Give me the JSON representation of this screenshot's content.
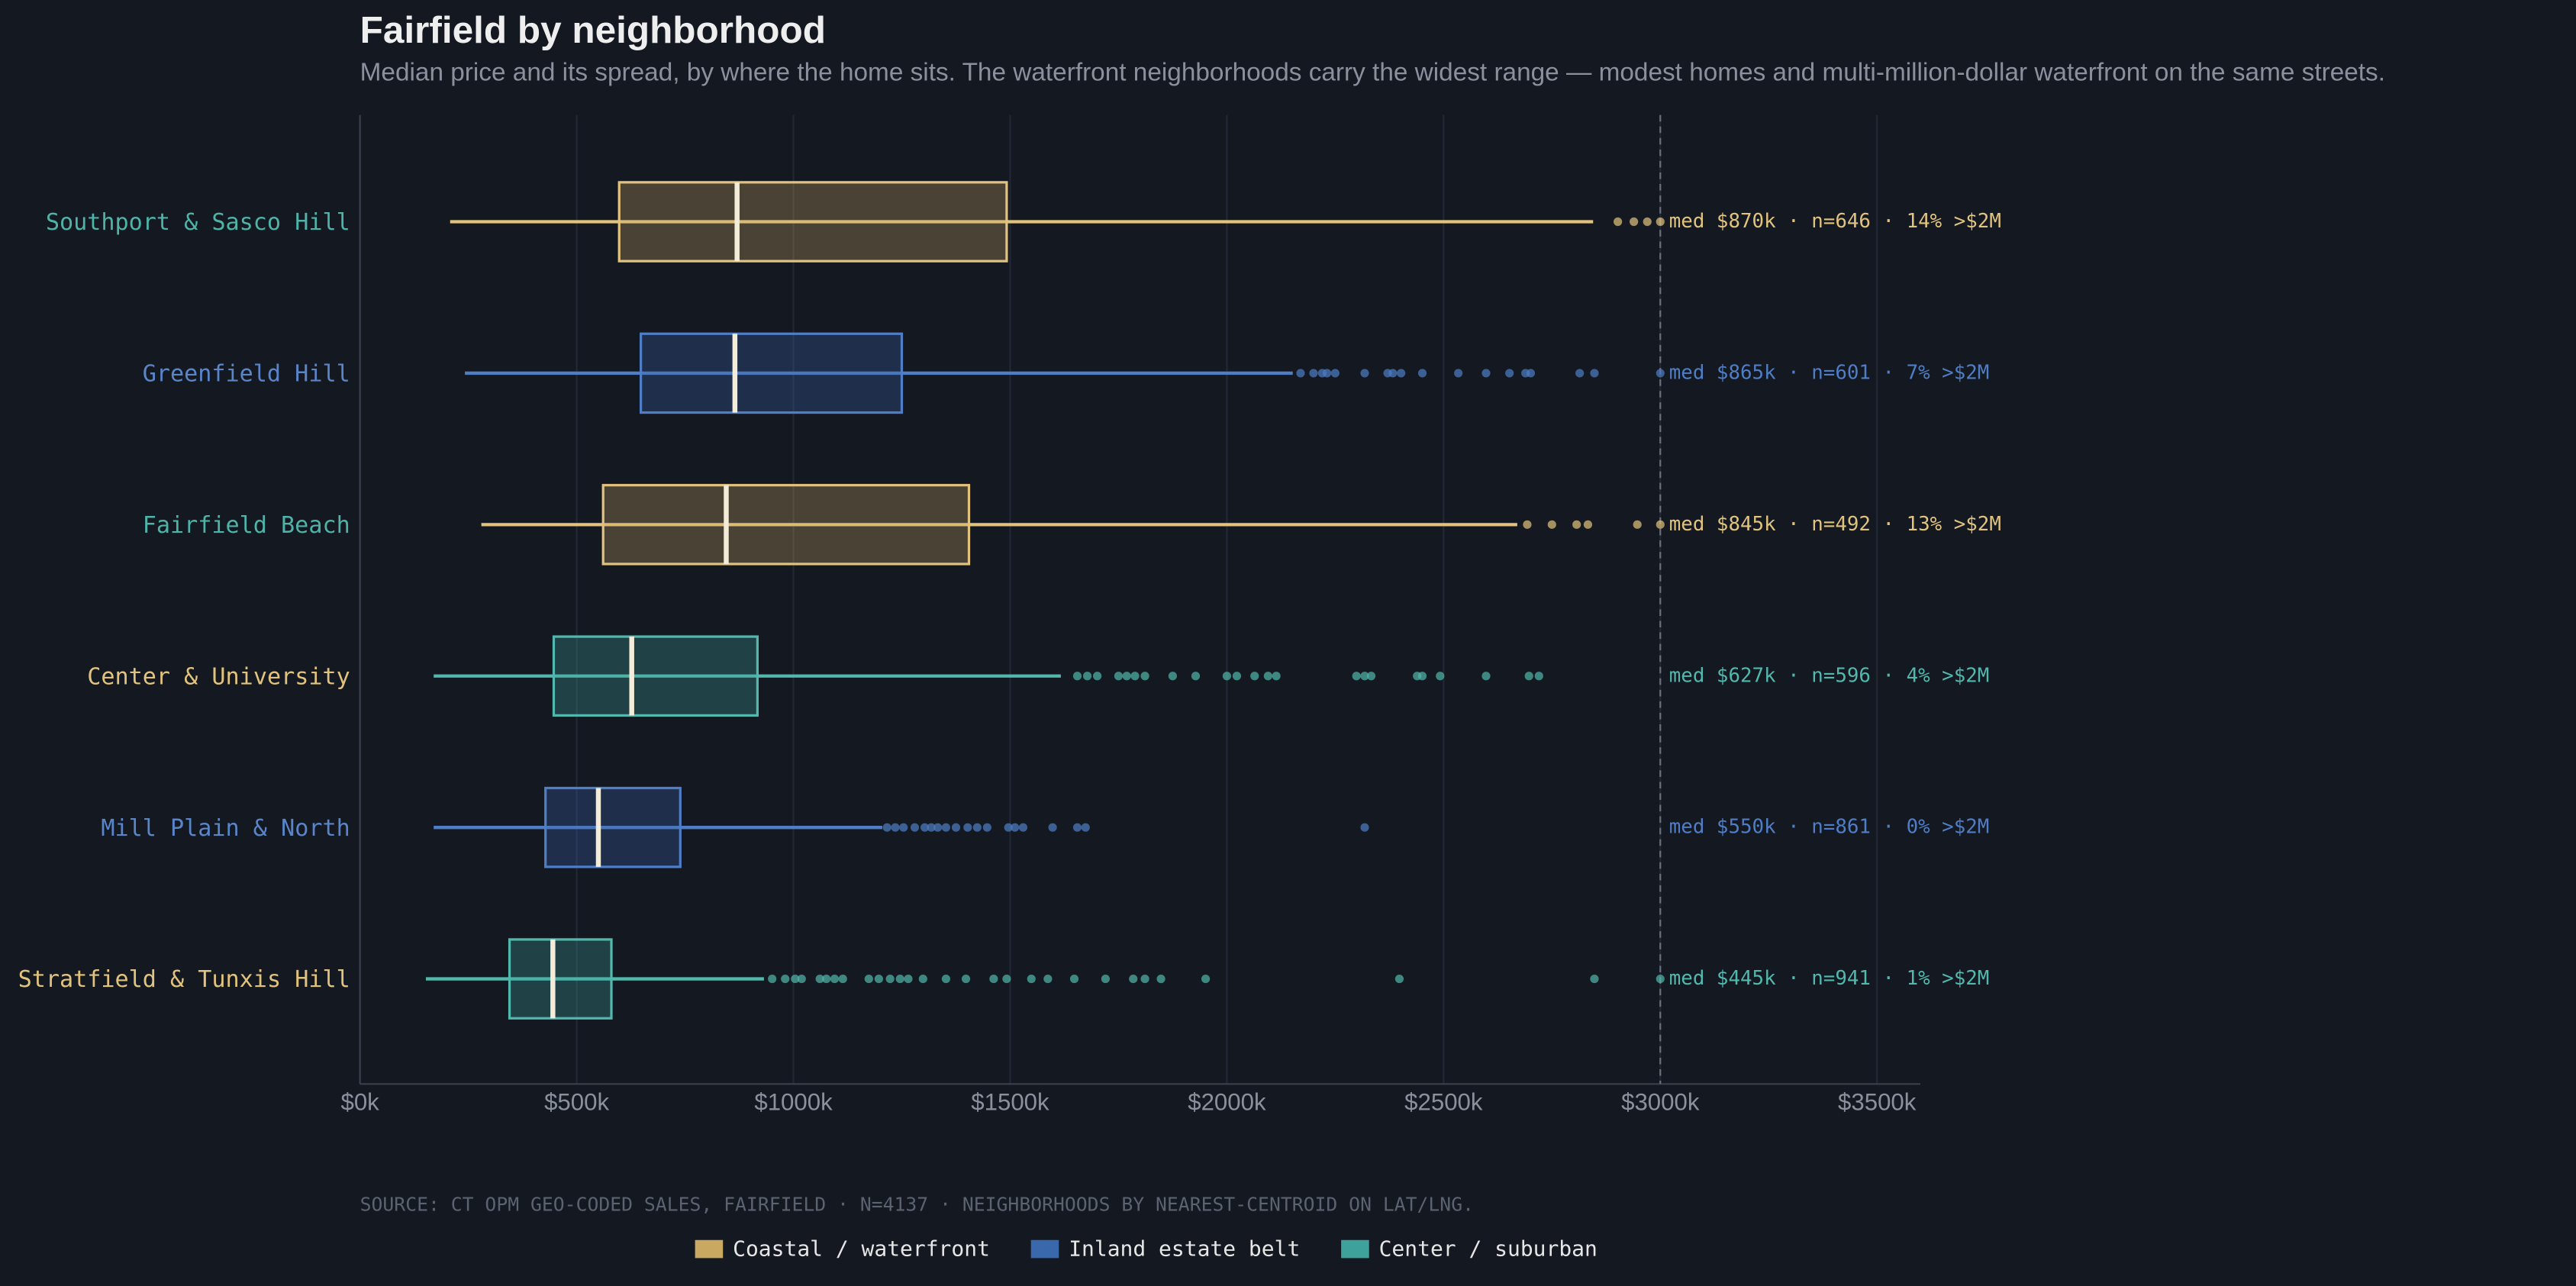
{
  "chart_data": {
    "type": "boxplot",
    "title": "Fairfield by neighborhood",
    "subtitle": "Median price and its spread, by where the home sits. The waterfront neighborhoods carry the widest range — modest homes and multi-million-dollar waterfront on the same streets.",
    "source": "SOURCE: CT OPM GEO-CODED SALES, FAIRFIELD · N=4137 · NEIGHBORHOODS BY NEAREST-CENTROID ON LAT/LNG.",
    "xlim": [
      0,
      3600
    ],
    "xticks": [
      {
        "value": 0,
        "label": "$0k"
      },
      {
        "value": 500,
        "label": "$500k"
      },
      {
        "value": 1000,
        "label": "$1000k"
      },
      {
        "value": 1500,
        "label": "$1500k"
      },
      {
        "value": 2000,
        "label": "$2000k"
      },
      {
        "value": 2500,
        "label": "$2500k"
      },
      {
        "value": 3000,
        "label": "$3000k"
      },
      {
        "value": 3500,
        "label": "$3500k"
      }
    ],
    "reference_x": 3000,
    "series": [
      {
        "name": "Coastal / waterfront",
        "color": "#c9a862",
        "stroke": "#e2c37e"
      },
      {
        "name": "Inland estate belt",
        "color": "#3a68ad",
        "stroke": "#4f7ec6"
      },
      {
        "name": "Center / suburban",
        "color": "#3fa29a",
        "stroke": "#52b8ad"
      }
    ],
    "categories": [
      "Southport & Sasco Hill",
      "Greenfield Hill",
      "Fairfield Beach",
      "Center & University",
      "Mill Plain & North",
      "Stratfield & Tunxis Hill"
    ],
    "label_colors": [
      "#4fb3a8",
      "#5a85c8",
      "#4fb3a8",
      "#e2c37e",
      "#5a85c8",
      "#e2c37e"
    ],
    "boxes": [
      {
        "group": 0,
        "low": 208,
        "q1": 598,
        "median": 870,
        "q3": 1492,
        "high": 2845,
        "outliers": [
          2902,
          2939,
          2970,
          3000
        ],
        "label": "med $870k · n=646 · 14% >$2M"
      },
      {
        "group": 1,
        "low": 242,
        "q1": 648,
        "median": 865,
        "q3": 1250,
        "high": 2152,
        "outliers": [
          2170,
          2200,
          2220,
          2231,
          2250,
          2318,
          2371,
          2383,
          2402,
          2451,
          2534,
          2598,
          2652,
          2689,
          2701,
          2814,
          2848,
          3000
        ],
        "label": "med $865k · n=601 · 7% >$2M"
      },
      {
        "group": 0,
        "low": 280,
        "q1": 561,
        "median": 845,
        "q3": 1405,
        "high": 2670,
        "outliers": [
          2693,
          2750,
          2807,
          2833,
          2947,
          3000
        ],
        "label": "med $845k · n=492 · 13% >$2M"
      },
      {
        "group": 2,
        "low": 170,
        "q1": 447,
        "median": 627,
        "q3": 917,
        "high": 1617,
        "outliers": [
          1655,
          1678,
          1701,
          1750,
          1769,
          1788,
          1811,
          1875,
          1928,
          2000,
          2023,
          2064,
          2095,
          2114,
          2299,
          2318,
          2333,
          2439,
          2451,
          2492,
          2598,
          2697,
          2720
        ],
        "label": "med $627k · n=596 · 4% >$2M"
      },
      {
        "group": 1,
        "low": 170,
        "q1": 428,
        "median": 550,
        "q3": 739,
        "high": 1205,
        "outliers": [
          1216,
          1235,
          1254,
          1280,
          1303,
          1318,
          1333,
          1352,
          1375,
          1402,
          1424,
          1447,
          1496,
          1511,
          1530,
          1598,
          1655,
          1674,
          2318
        ],
        "label": "med $550k · n=861 · 0% >$2M"
      },
      {
        "group": 2,
        "low": 152,
        "q1": 345,
        "median": 445,
        "q3": 580,
        "high": 932,
        "outliers": [
          951,
          981,
          1004,
          1019,
          1061,
          1076,
          1095,
          1114,
          1174,
          1197,
          1223,
          1246,
          1265,
          1299,
          1352,
          1398,
          1462,
          1492,
          1549,
          1587,
          1648,
          1720,
          1784,
          1811,
          1848,
          1951,
          2398,
          2848,
          3000
        ],
        "label": "med $445k · n=941 · 1% >$2M"
      }
    ]
  }
}
